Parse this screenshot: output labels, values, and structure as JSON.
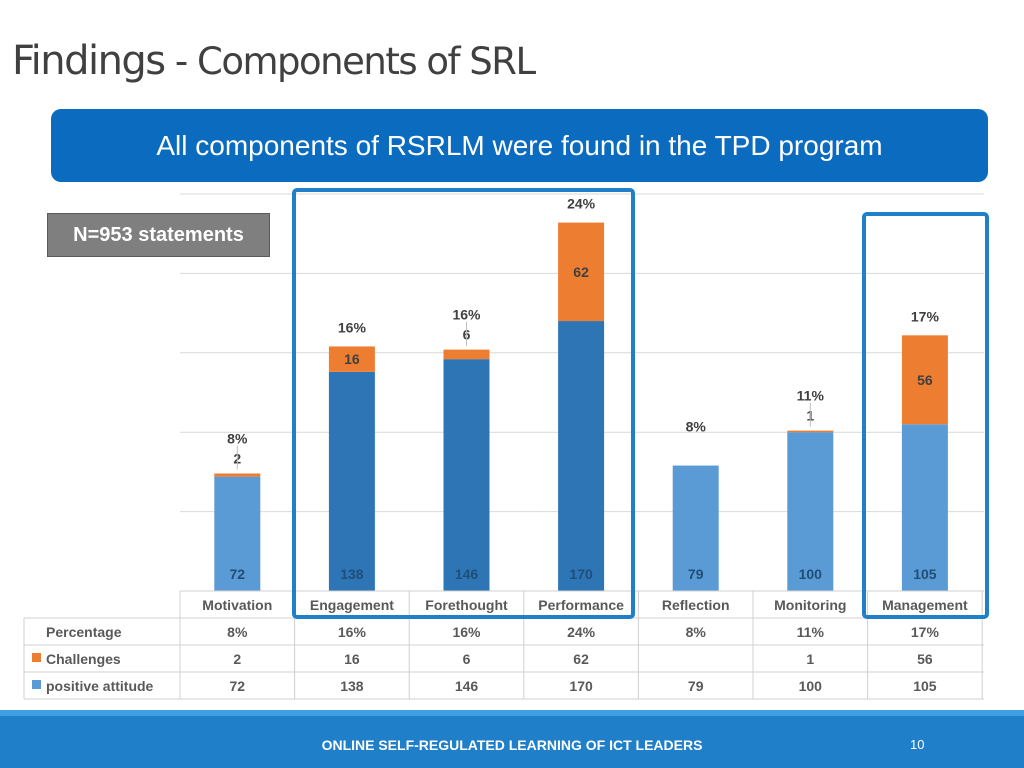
{
  "title": {
    "main": "Findings",
    "sub": " - Components of SRL"
  },
  "banner": {
    "text": "All components of RSRLM were found in the TPD program"
  },
  "n_label": "N=953  statements",
  "footer": {
    "text": "ONLINE SELF-REGULATED LEARNING OF ICT LEADERS",
    "page": "10"
  },
  "colors": {
    "positive": "#5b9bd5",
    "positive_highlight": "#2e75b6",
    "challenges": "#ed7d31",
    "banner": "#0b6cbf",
    "highlight_box": "#1f7fc8"
  },
  "chart_data": {
    "type": "bar",
    "stacked": true,
    "categories": [
      "Motivation",
      "Engagement",
      "Forethought",
      "Performance",
      "Reflection",
      "Monitoring",
      "Management"
    ],
    "series": [
      {
        "name": "positive attitude",
        "values": [
          72,
          138,
          146,
          170,
          79,
          100,
          105
        ]
      },
      {
        "name": "Challenges",
        "values": [
          2,
          16,
          6,
          62,
          null,
          1,
          56
        ]
      }
    ],
    "percentages": [
      "8%",
      "16%",
      "16%",
      "24%",
      "8%",
      "11%",
      "17%"
    ],
    "table_row_labels": [
      "Percentage",
      "Challenges",
      "positive attitude"
    ],
    "highlighted_groups": [
      [
        "Engagement",
        "Forethought",
        "Performance"
      ],
      [
        "Management"
      ]
    ],
    "ylim": [
      0,
      250
    ],
    "grid": true,
    "xlabel": "",
    "ylabel": ""
  }
}
